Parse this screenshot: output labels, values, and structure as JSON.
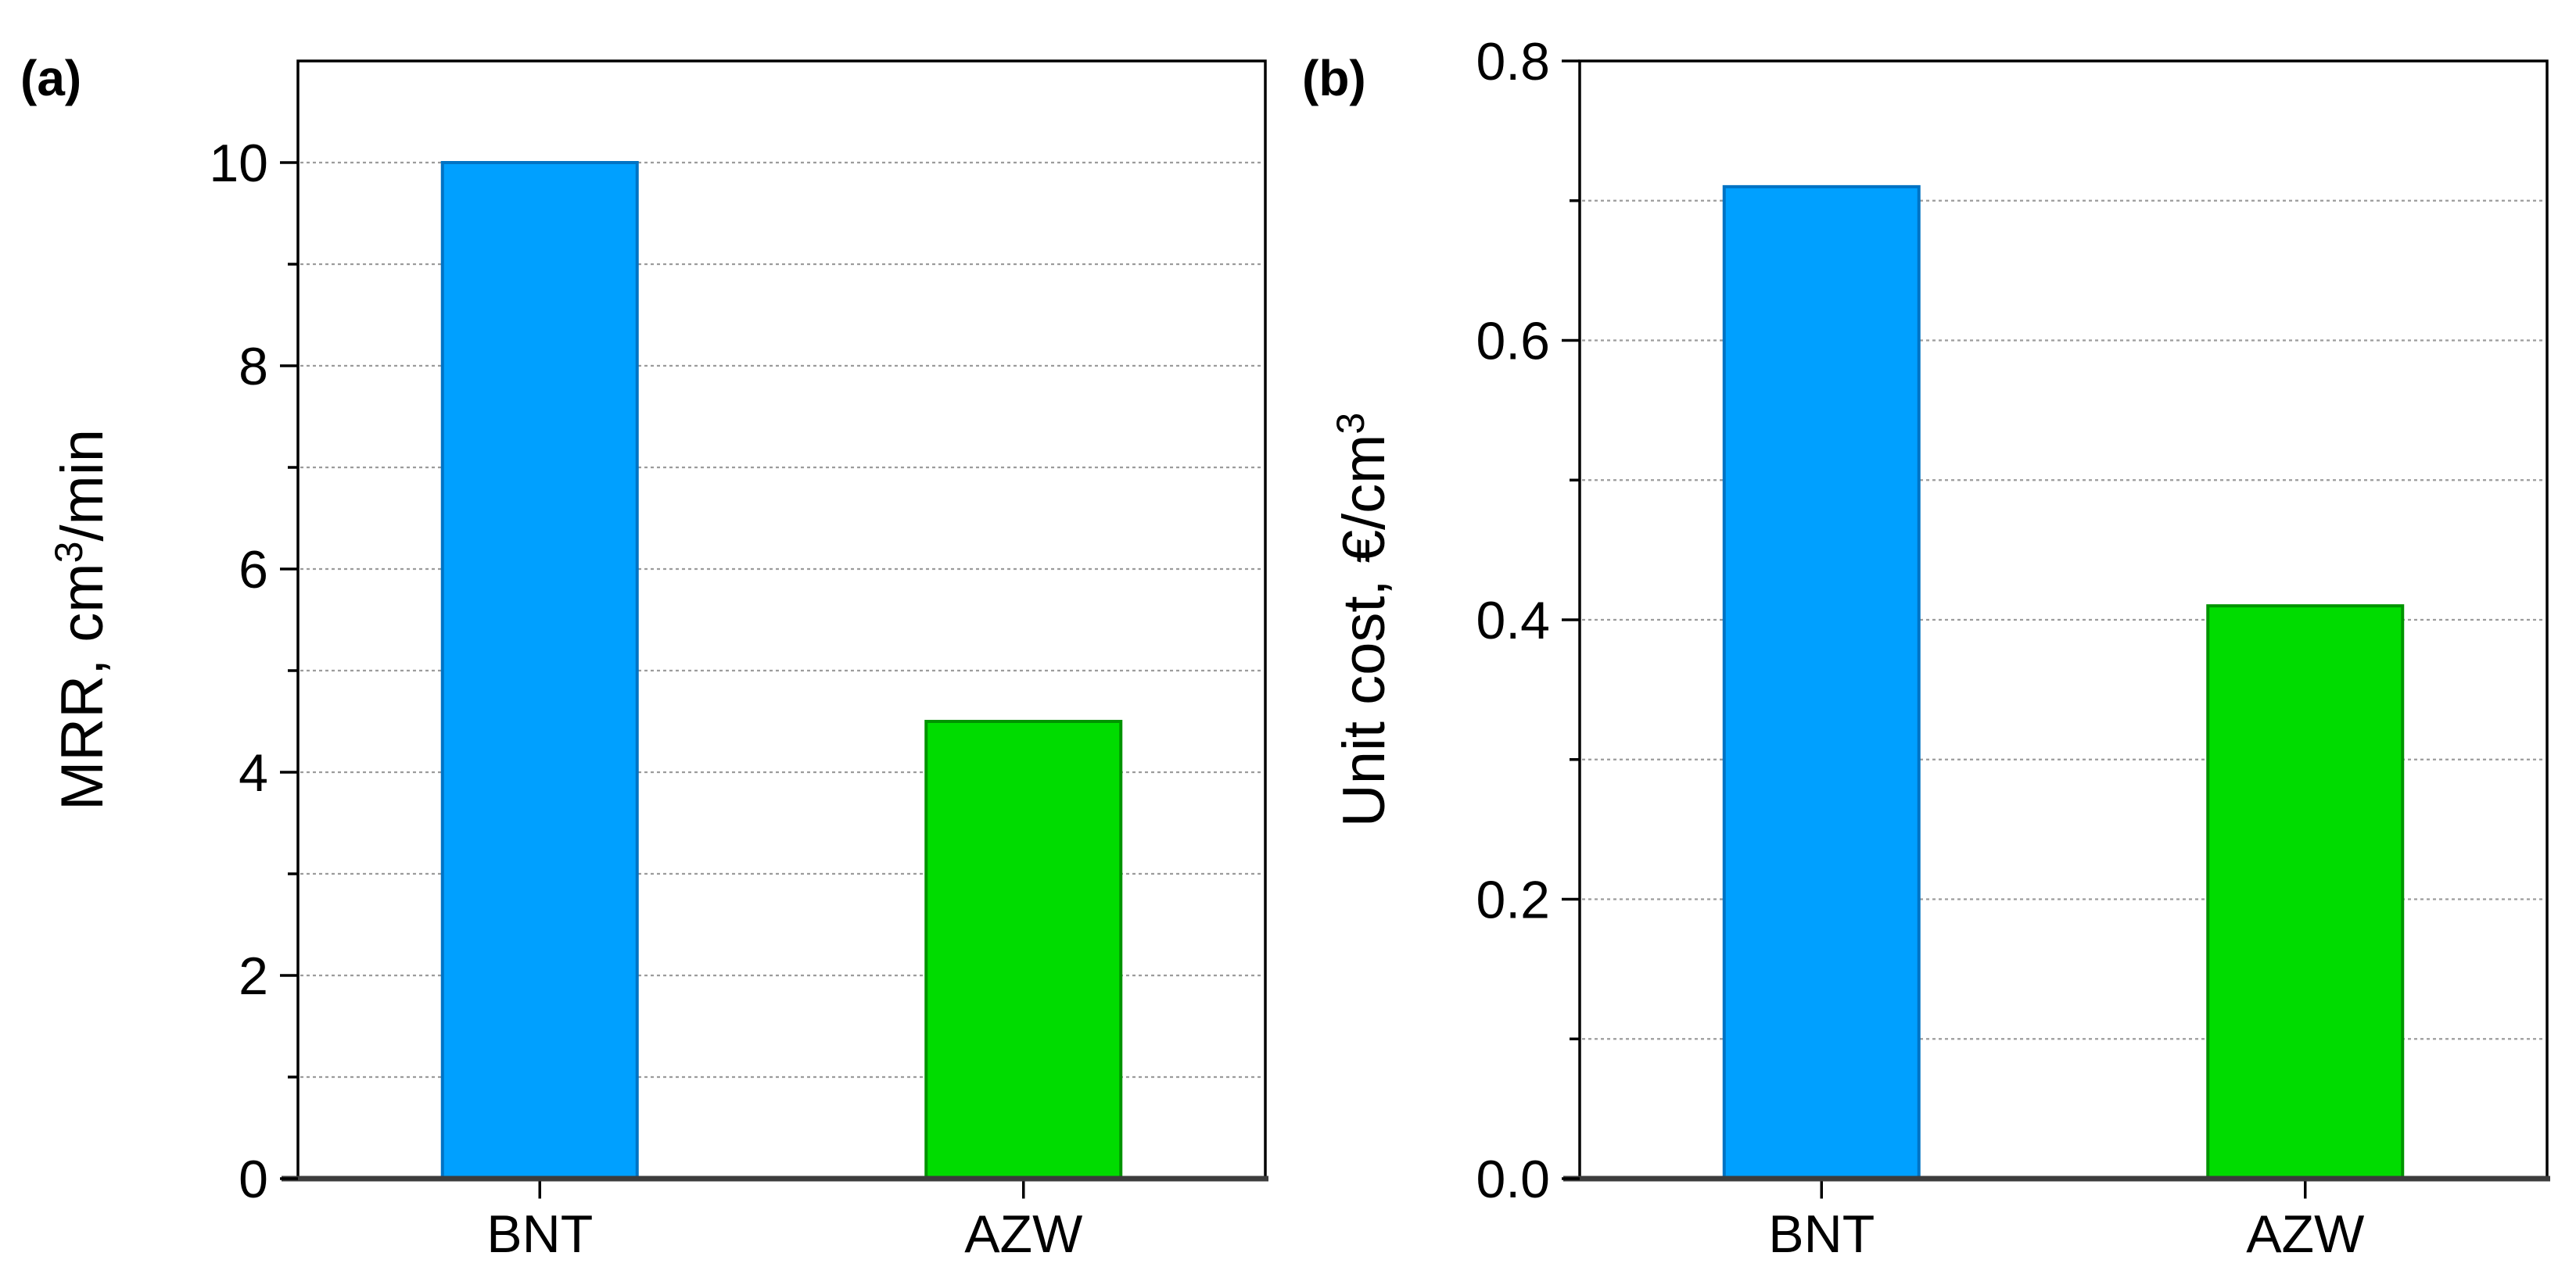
{
  "figure": {
    "background": "#ffffff",
    "frame_color": "#000000",
    "baseline_color": "#3c3c3c",
    "gridline_color": "#9c9c9c",
    "text_color": "#000000"
  },
  "chart_data": [
    {
      "type": "bar",
      "panel_label": "(a)",
      "categories": [
        "BNT",
        "AZW"
      ],
      "values": [
        10.0,
        4.5
      ],
      "bar_fill_colors": [
        "#00a0ff",
        "#00dc00"
      ],
      "bar_edge_colors": [
        "#0073c4",
        "#009400"
      ],
      "title": "",
      "xlabel": "",
      "ylabel": "MRR, cm³/min",
      "ylabel_parts": {
        "main": "MRR, cm",
        "sup": "3",
        "tail": "/min"
      },
      "ylim": [
        0,
        11
      ],
      "ytick_values": [
        0,
        2,
        4,
        6,
        8,
        10
      ],
      "ytick_labels": [
        "0",
        "2",
        "4",
        "6",
        "8",
        "10"
      ],
      "ytick_minor_values": [
        1,
        3,
        5,
        7,
        9
      ],
      "grid": "horizontal dashed gridlines at every major and minor tick",
      "legend": "none"
    },
    {
      "type": "bar",
      "panel_label": "(b)",
      "categories": [
        "BNT",
        "AZW"
      ],
      "values": [
        0.71,
        0.41
      ],
      "bar_fill_colors": [
        "#00a0ff",
        "#00dc00"
      ],
      "bar_edge_colors": [
        "#0073c4",
        "#009400"
      ],
      "title": "",
      "xlabel": "",
      "ylabel": "Unit cost, €/cm³",
      "ylabel_parts": {
        "main": "Unit cost, €/cm",
        "sup": "3",
        "tail": ""
      },
      "ylim": [
        0,
        0.8
      ],
      "ytick_values": [
        0,
        0.2,
        0.4,
        0.6,
        0.8
      ],
      "ytick_labels": [
        "0.0",
        "0.2",
        "0.4",
        "0.6",
        "0.8"
      ],
      "ytick_minor_values": [
        0.1,
        0.3,
        0.5,
        0.7
      ],
      "grid": "horizontal dashed gridlines at every major and minor tick",
      "legend": "none"
    }
  ]
}
